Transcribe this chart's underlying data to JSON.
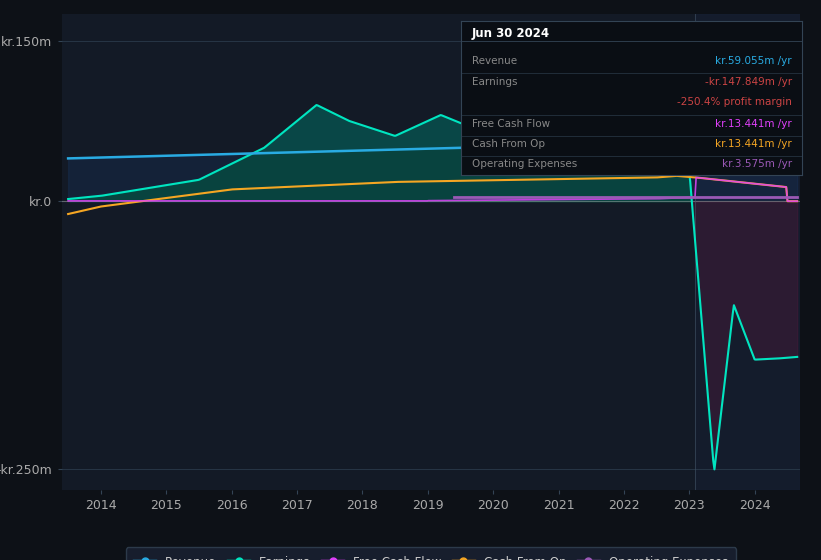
{
  "bg_color": "#0d1117",
  "plot_bg_color": "#131a26",
  "ylim": [
    -270,
    175
  ],
  "yticks": [
    -250,
    0,
    150
  ],
  "ytick_labels": [
    "-kr.250m",
    "kr.0",
    "kr.150m"
  ],
  "colors": {
    "revenue": "#29abe2",
    "earnings": "#00e5c0",
    "earnings_fill_pos": "#006655",
    "earnings_fill_neg": "#4a1a3a",
    "revenue_fill": "#1a3a6a",
    "free_cash_flow": "#e040fb",
    "cash_from_op": "#f5a623",
    "operating_expenses": "#9b59b6",
    "zero_line": "#888888",
    "grid": "#2a3a4a",
    "future_shade": "#1a2a4a"
  },
  "info_box": {
    "bg": "#0a0e14",
    "border": "#334455",
    "date": "Jun 30 2024",
    "rows": [
      {
        "label": "Revenue",
        "label_color": "#888888",
        "value": "kr.59.055m /yr",
        "value_color": "#29abe2"
      },
      {
        "label": "Earnings",
        "label_color": "#888888",
        "value": "-kr.147.849m /yr",
        "value_color": "#cc4444"
      },
      {
        "label": "",
        "label_color": "",
        "value": "-250.4% profit margin",
        "value_color": "#cc4444"
      },
      {
        "label": "Free Cash Flow",
        "label_color": "#888888",
        "value": "kr.13.441m /yr",
        "value_color": "#e040fb"
      },
      {
        "label": "Cash From Op",
        "label_color": "#888888",
        "value": "kr.13.441m /yr",
        "value_color": "#f5a623"
      },
      {
        "label": "Operating Expenses",
        "label_color": "#888888",
        "value": "kr.3.575m /yr",
        "value_color": "#9b59b6"
      }
    ]
  },
  "legend": [
    {
      "label": "Revenue",
      "color": "#29abe2"
    },
    {
      "label": "Earnings",
      "color": "#00e5c0"
    },
    {
      "label": "Free Cash Flow",
      "color": "#e040fb"
    },
    {
      "label": "Cash From Op",
      "color": "#f5a623"
    },
    {
      "label": "Operating Expenses",
      "color": "#9b59b6"
    }
  ]
}
